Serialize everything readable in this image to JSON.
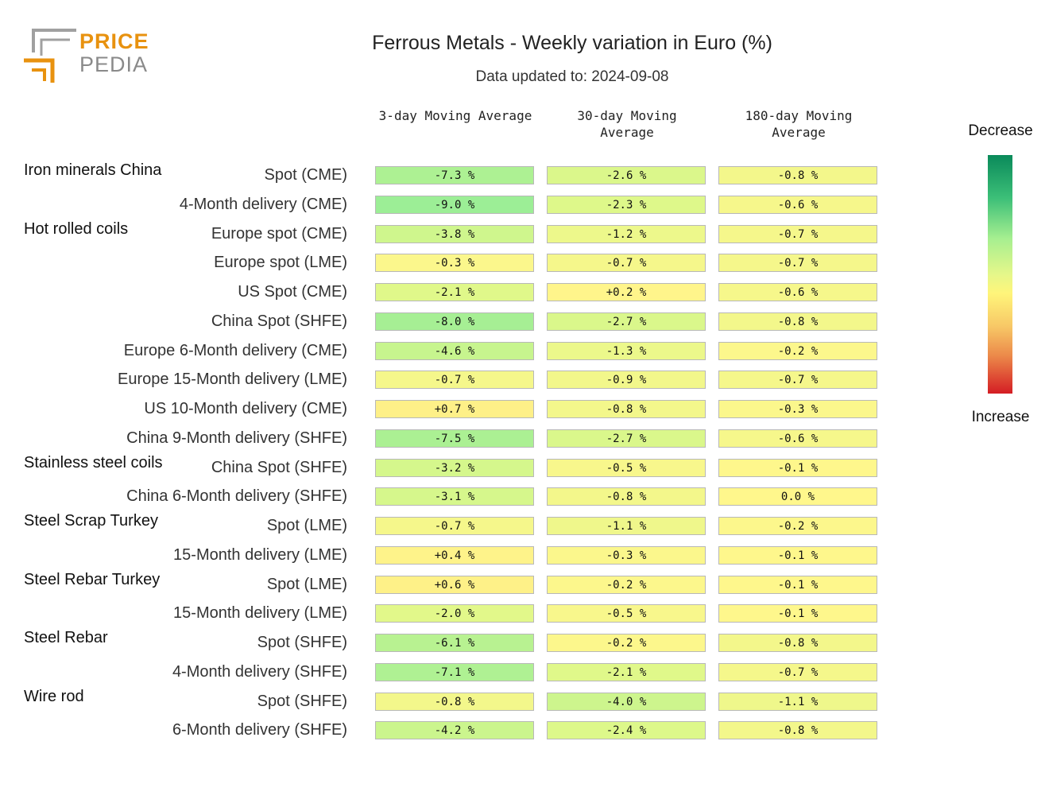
{
  "logo": {
    "line1": "PRICE",
    "line2": "PEDIA"
  },
  "chart_data": {
    "type": "table",
    "title": "Ferrous Metals - Weekly variation in Euro (%)",
    "subtitle": "Data updated to: 2024-09-08",
    "columns": [
      "3-day Moving Average",
      "30-day Moving Average",
      "180-day Moving Average"
    ],
    "legend": {
      "top": "Decrease",
      "bottom": "Increase"
    },
    "rows": [
      {
        "group": "Iron minerals China",
        "label": "Spot (CME)",
        "values": [
          -7.3,
          -2.6,
          -0.8
        ],
        "text": [
          "-7.3 %",
          "-2.6 %",
          "-0.8 %"
        ]
      },
      {
        "group": "",
        "label": "4-Month delivery (CME)",
        "values": [
          -9.0,
          -2.3,
          -0.6
        ],
        "text": [
          "-9.0 %",
          "-2.3 %",
          "-0.6 %"
        ]
      },
      {
        "group": "Hot rolled coils",
        "label": "Europe spot (CME)",
        "values": [
          -3.8,
          -1.2,
          -0.7
        ],
        "text": [
          "-3.8 %",
          "-1.2 %",
          "-0.7 %"
        ]
      },
      {
        "group": "",
        "label": "Europe spot (LME)",
        "values": [
          -0.3,
          -0.7,
          -0.7
        ],
        "text": [
          "-0.3 %",
          "-0.7 %",
          "-0.7 %"
        ]
      },
      {
        "group": "",
        "label": "US Spot (CME)",
        "values": [
          -2.1,
          0.2,
          -0.6
        ],
        "text": [
          "-2.1 %",
          "+0.2 %",
          "-0.6 %"
        ]
      },
      {
        "group": "",
        "label": "China Spot (SHFE)",
        "values": [
          -8.0,
          -2.7,
          -0.8
        ],
        "text": [
          "-8.0 %",
          "-2.7 %",
          "-0.8 %"
        ]
      },
      {
        "group": "",
        "label": "Europe 6-Month delivery (CME)",
        "values": [
          -4.6,
          -1.3,
          -0.2
        ],
        "text": [
          "-4.6 %",
          "-1.3 %",
          "-0.2 %"
        ]
      },
      {
        "group": "",
        "label": "Europe 15-Month delivery (LME)",
        "values": [
          -0.7,
          -0.9,
          -0.7
        ],
        "text": [
          "-0.7 %",
          "-0.9 %",
          "-0.7 %"
        ]
      },
      {
        "group": "",
        "label": "US 10-Month delivery (CME)",
        "values": [
          0.7,
          -0.8,
          -0.3
        ],
        "text": [
          "+0.7 %",
          "-0.8 %",
          "-0.3 %"
        ]
      },
      {
        "group": "",
        "label": "China 9-Month delivery (SHFE)",
        "values": [
          -7.5,
          -2.7,
          -0.6
        ],
        "text": [
          "-7.5 %",
          "-2.7 %",
          "-0.6 %"
        ]
      },
      {
        "group": "Stainless steel coils",
        "label": "China Spot (SHFE)",
        "values": [
          -3.2,
          -0.5,
          -0.1
        ],
        "text": [
          "-3.2 %",
          "-0.5 %",
          "-0.1 %"
        ]
      },
      {
        "group": "",
        "label": "China 6-Month delivery (SHFE)",
        "values": [
          -3.1,
          -0.8,
          0.0
        ],
        "text": [
          "-3.1 %",
          "-0.8 %",
          "0.0 %"
        ]
      },
      {
        "group": "Steel Scrap Turkey",
        "label": "Spot (LME)",
        "values": [
          -0.7,
          -1.1,
          -0.2
        ],
        "text": [
          "-0.7 %",
          "-1.1 %",
          "-0.2 %"
        ]
      },
      {
        "group": "",
        "label": "15-Month delivery (LME)",
        "values": [
          0.4,
          -0.3,
          -0.1
        ],
        "text": [
          "+0.4 %",
          "-0.3 %",
          "-0.1 %"
        ]
      },
      {
        "group": "Steel Rebar Turkey",
        "label": "Spot (LME)",
        "values": [
          0.6,
          -0.2,
          -0.1
        ],
        "text": [
          "+0.6 %",
          "-0.2 %",
          "-0.1 %"
        ]
      },
      {
        "group": "",
        "label": "15-Month delivery (LME)",
        "values": [
          -2.0,
          -0.5,
          -0.1
        ],
        "text": [
          "-2.0 %",
          "-0.5 %",
          "-0.1 %"
        ]
      },
      {
        "group": "Steel Rebar",
        "label": "Spot (SHFE)",
        "values": [
          -6.1,
          -0.2,
          -0.8
        ],
        "text": [
          "-6.1 %",
          "-0.2 %",
          "-0.8 %"
        ]
      },
      {
        "group": "",
        "label": "4-Month delivery (SHFE)",
        "values": [
          -7.1,
          -2.1,
          -0.7
        ],
        "text": [
          "-7.1 %",
          "-2.1 %",
          "-0.7 %"
        ]
      },
      {
        "group": "Wire rod",
        "label": "Spot (SHFE)",
        "values": [
          -0.8,
          -4.0,
          -1.1
        ],
        "text": [
          "-0.8 %",
          "-4.0 %",
          "-1.1 %"
        ]
      },
      {
        "group": "",
        "label": "6-Month delivery (SHFE)",
        "values": [
          -4.2,
          -2.4,
          -0.8
        ],
        "text": [
          "-4.2 %",
          "-2.4 %",
          "-0.8 %"
        ]
      }
    ]
  }
}
